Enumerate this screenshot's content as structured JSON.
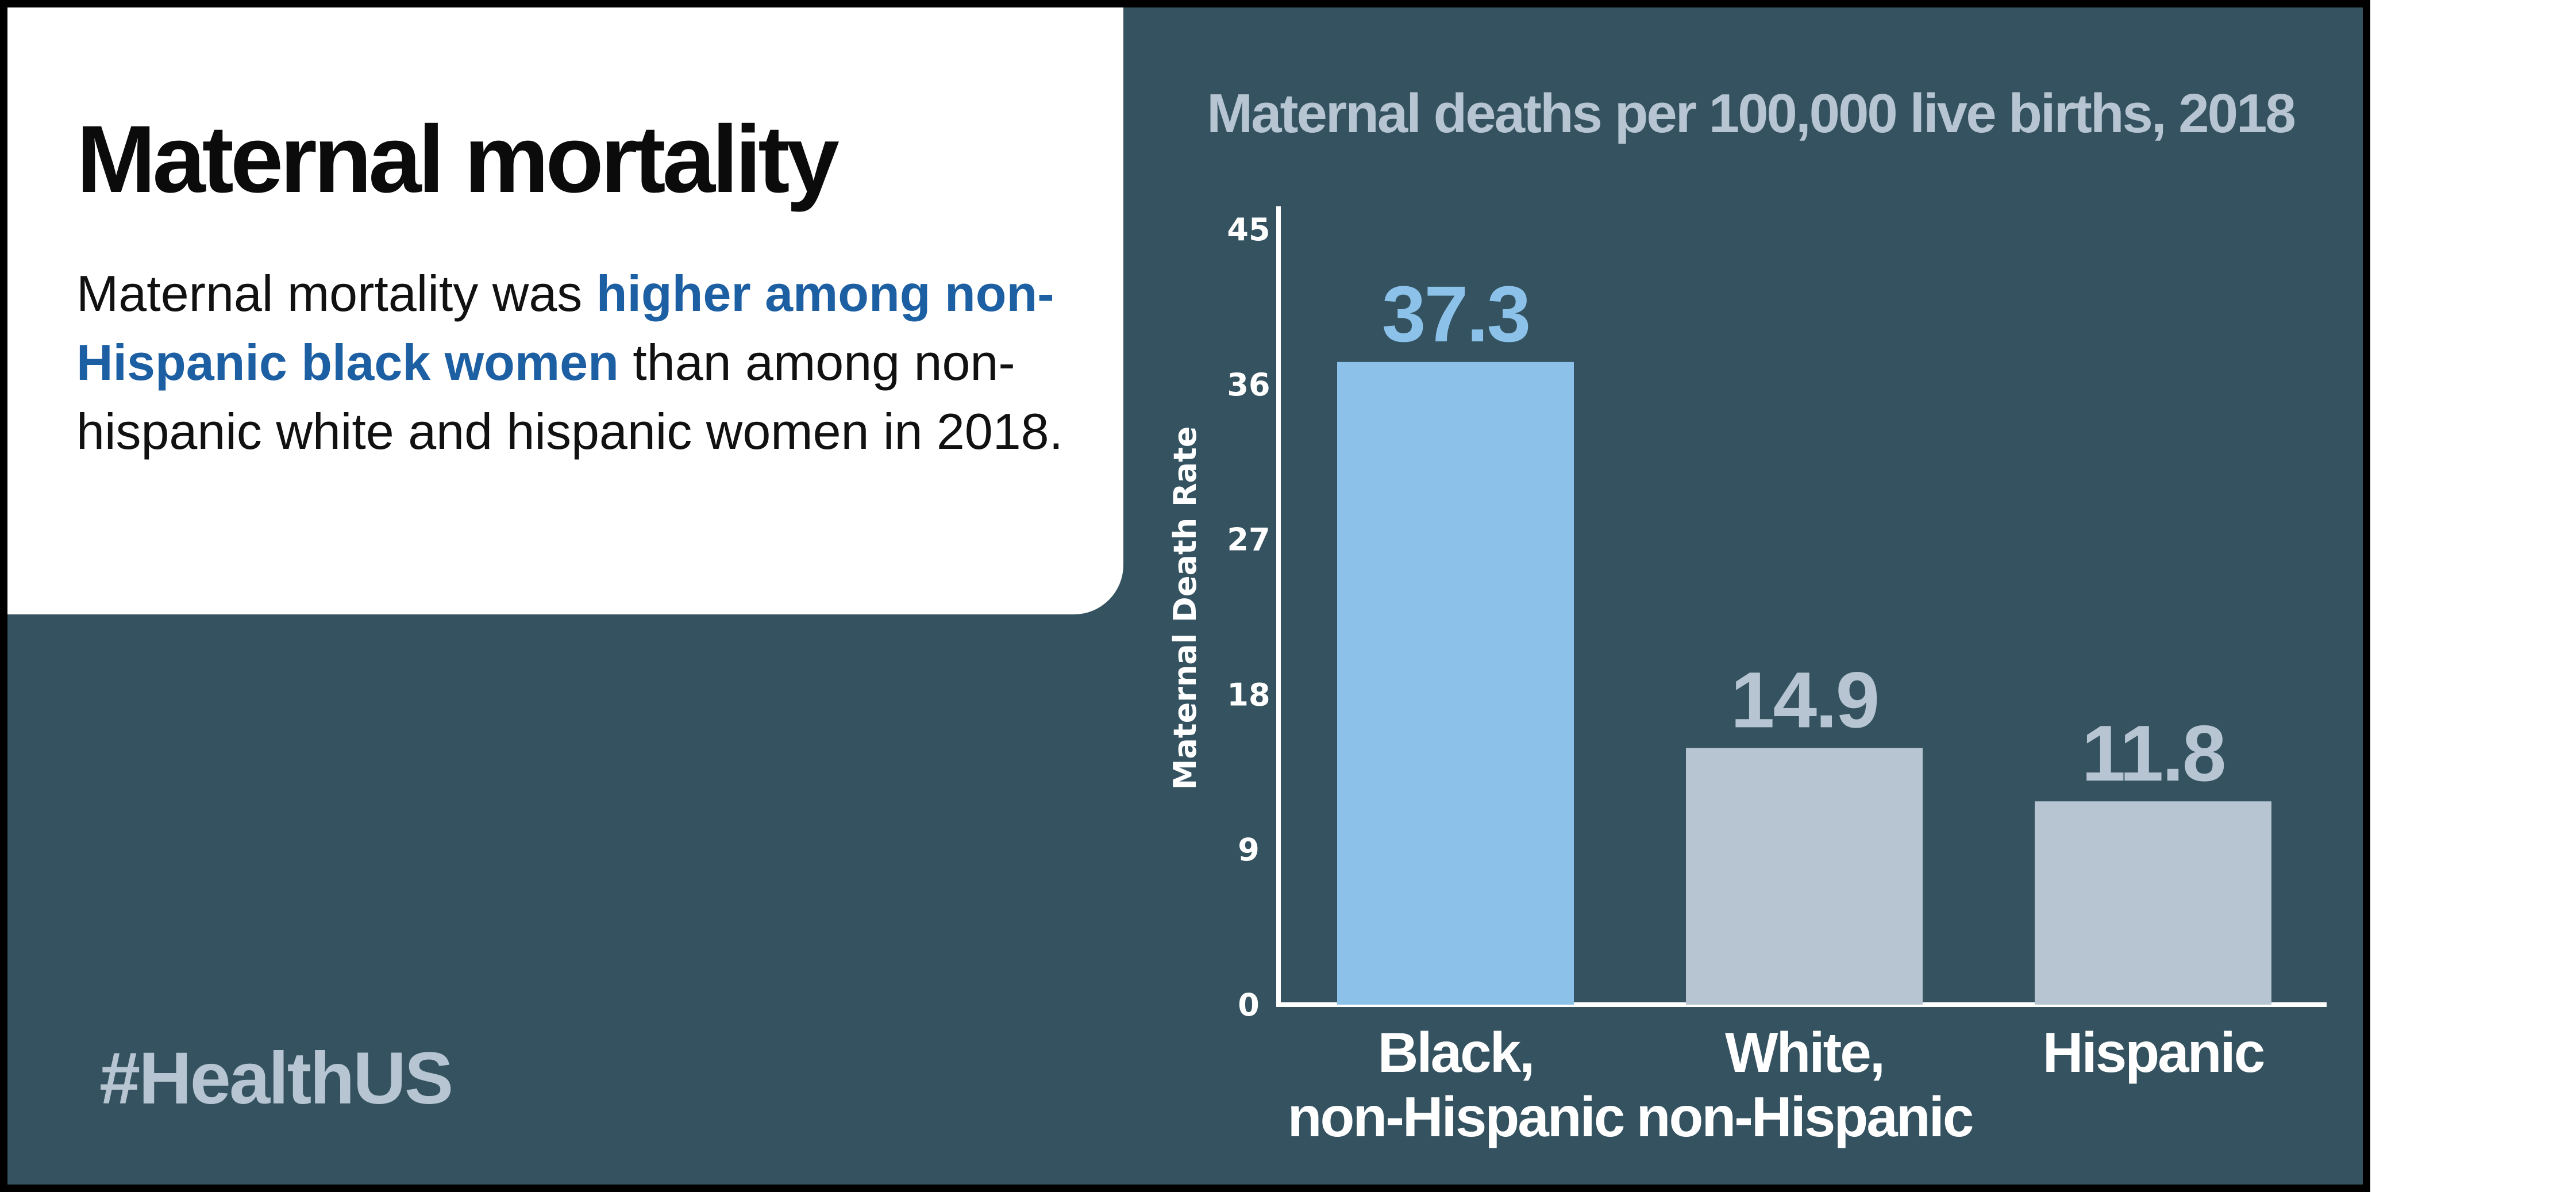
{
  "headline": "Maternal mortality",
  "body": {
    "before": "Maternal mortality was ",
    "highlight": "higher among non-Hispanic black women",
    "after": " than among non-hispanic white and hispanic women in 2018."
  },
  "hashtag": "#HealthUS",
  "colors": {
    "background": "#34525f",
    "panel": "#ffffff",
    "highlight_text": "#1d5fa3",
    "bar_highlight": "#8cc2ea",
    "bar_default": "#b6c5d1",
    "axis": "#ffffff"
  },
  "chart_data": {
    "type": "bar",
    "title": "Maternal deaths per 100,000 live births, 2018",
    "ylabel": "Maternal Death Rate",
    "xlabel": "",
    "ylim": [
      0,
      45
    ],
    "yticks": [
      0,
      9,
      18,
      27,
      36,
      45
    ],
    "categories": [
      [
        "Black,",
        "non-Hispanic"
      ],
      [
        "White,",
        "non-Hispanic"
      ],
      [
        "Hispanic"
      ]
    ],
    "values": [
      37.3,
      14.9,
      11.8
    ],
    "data_labels": [
      "37.3",
      "14.9",
      "11.8"
    ],
    "highlighted_index": 0,
    "grid": false,
    "legend": "none"
  }
}
